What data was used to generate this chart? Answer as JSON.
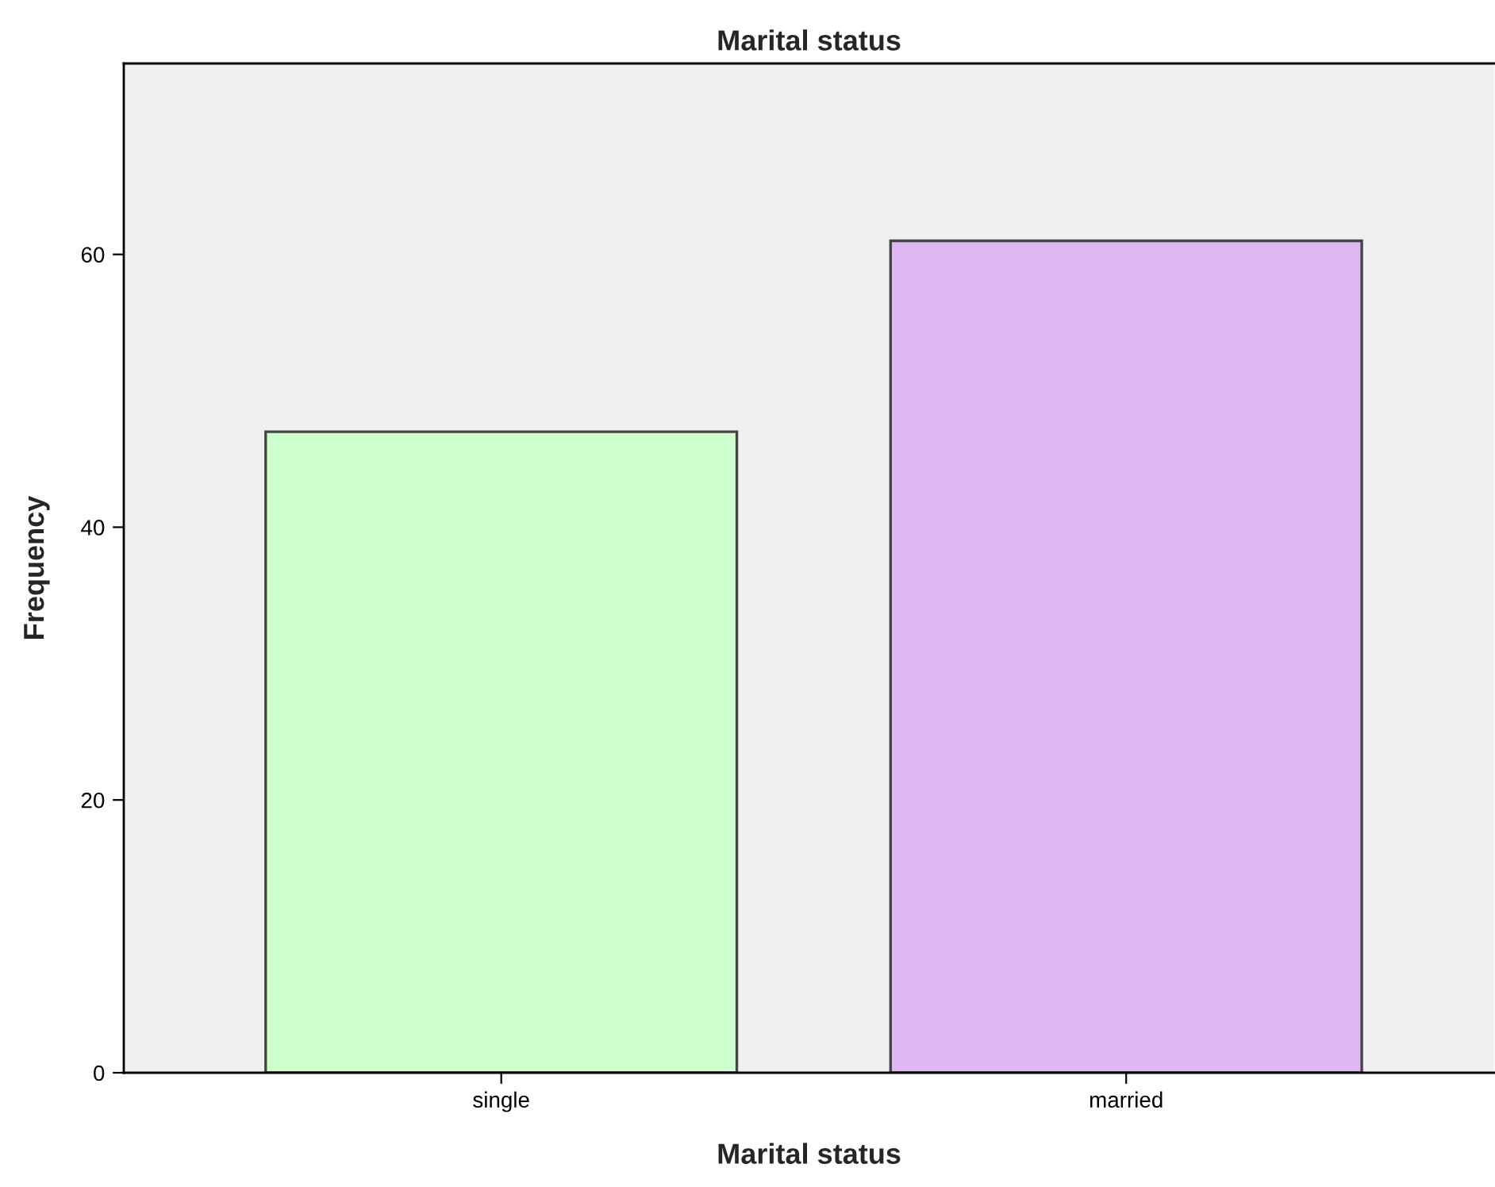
{
  "chart_data": {
    "type": "bar",
    "title": "Marital status",
    "xlabel": "Marital status",
    "ylabel": "Frequency",
    "categories": [
      "single",
      "married"
    ],
    "values": [
      47,
      61
    ],
    "colors": [
      "#ccffcc",
      "#dfb8f2"
    ],
    "ylim": [
      0,
      74
    ],
    "yticks": [
      0,
      20,
      40,
      60
    ],
    "grid": false,
    "legend": false
  }
}
